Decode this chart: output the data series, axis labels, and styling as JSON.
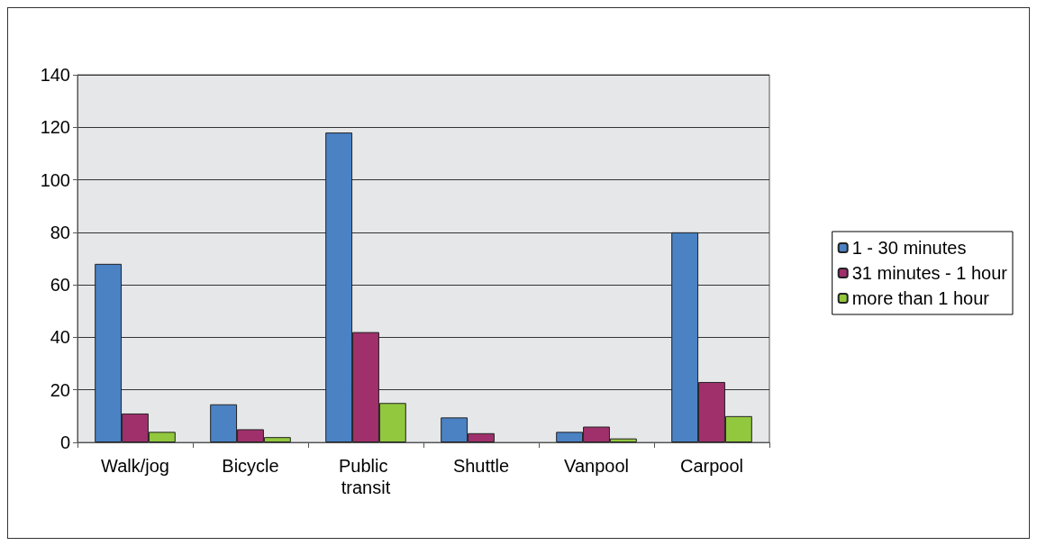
{
  "chart_data": {
    "type": "bar",
    "categories": [
      "Walk/jog",
      "Bicycle",
      "Public transit",
      "Shuttle",
      "Vanpool",
      "Carpool"
    ],
    "series": [
      {
        "name": "1 - 30 minutes",
        "color": "#4a82c4",
        "values": [
          68,
          14.5,
          118,
          9.5,
          4,
          80
        ]
      },
      {
        "name": "31 minutes - 1 hour",
        "color": "#a0306c",
        "values": [
          11,
          5,
          42,
          3.5,
          6,
          23
        ]
      },
      {
        "name": "more than 1 hour",
        "color": "#92c83e",
        "values": [
          4,
          2,
          15,
          null,
          1.5,
          10
        ]
      }
    ],
    "ylim": [
      0,
      140
    ],
    "yticks": [
      0,
      20,
      40,
      60,
      80,
      100,
      120,
      140
    ],
    "grid": "y",
    "legend": "right"
  }
}
